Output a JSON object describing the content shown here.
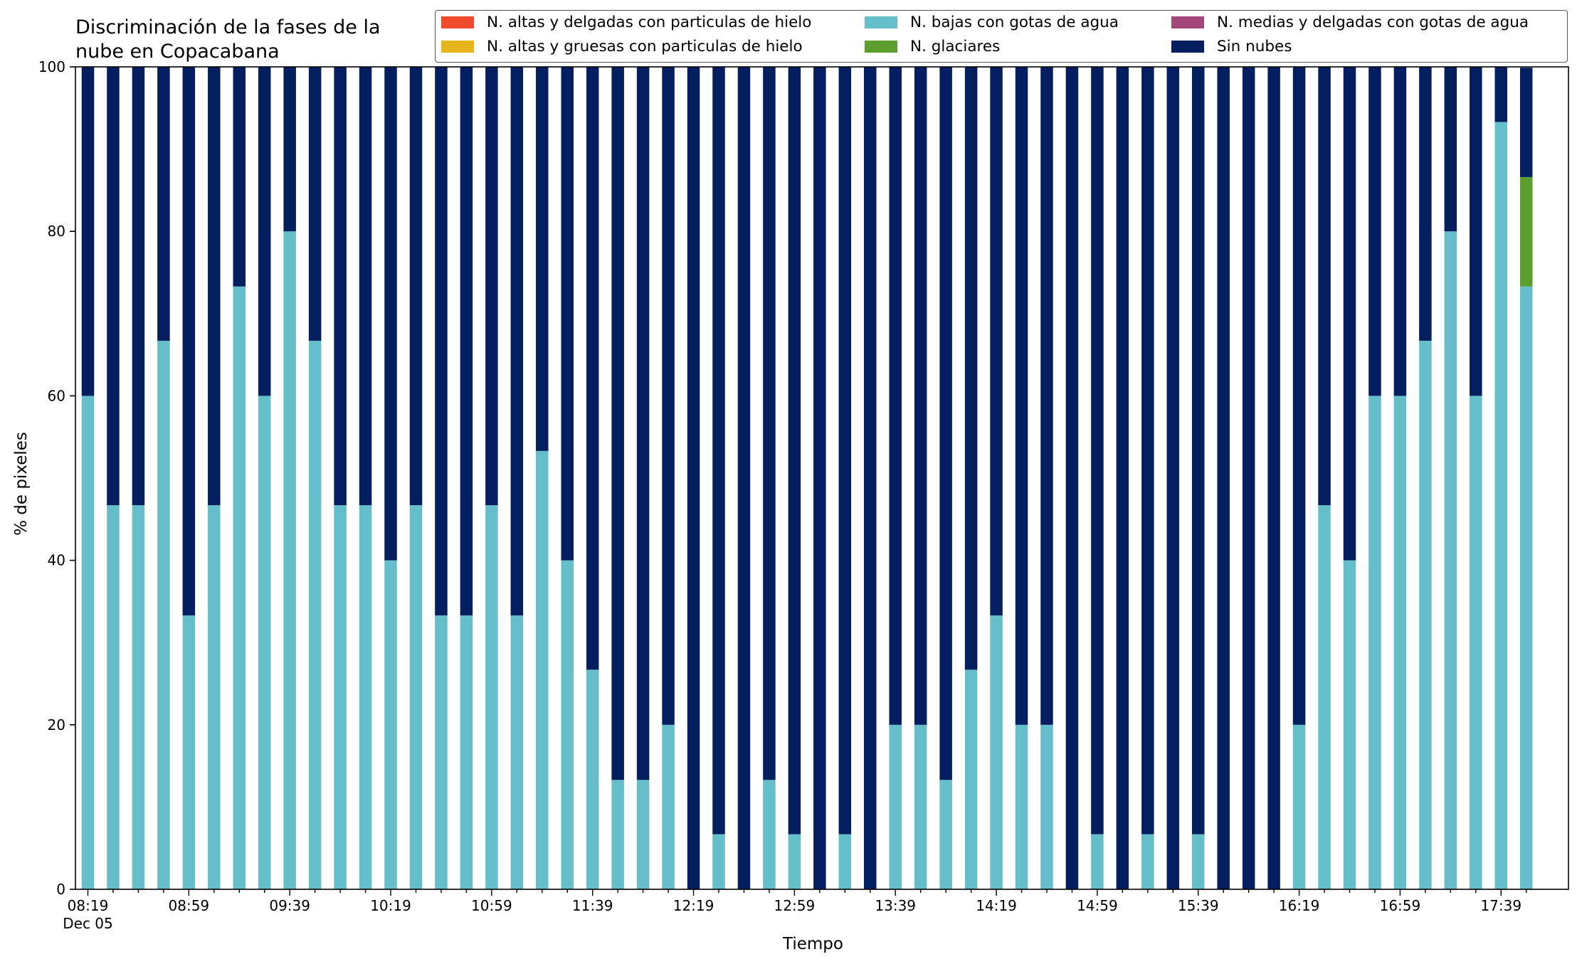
{
  "chart_data": {
    "type": "bar",
    "stacked": true,
    "title": "Discriminación de la fases de la\nnube en Copacabana",
    "xlabel": "Tiempo",
    "ylabel": "% de pixeles",
    "ylim": [
      0,
      100
    ],
    "yticks": [
      0,
      20,
      40,
      60,
      80,
      100
    ],
    "xtick_labels": [
      "08:19",
      "08:59",
      "09:39",
      "10:19",
      "10:59",
      "11:39",
      "12:19",
      "12:59",
      "13:39",
      "14:19",
      "14:59",
      "15:39",
      "16:19",
      "16:59",
      "17:39"
    ],
    "xtick_date": "Dec 05",
    "x_interval_minutes": 10,
    "legend_position": "top-right",
    "series": [
      {
        "name": "N. altas y delgadas con particulas de hielo",
        "color": "#f04a2c",
        "values": [
          0,
          0,
          0,
          0,
          0,
          0,
          0,
          0,
          0,
          0,
          0,
          0,
          0,
          0,
          0,
          0,
          0,
          0,
          0,
          0,
          0,
          0,
          0,
          0,
          0,
          0,
          0,
          0,
          0,
          0,
          0,
          0,
          0,
          0,
          0,
          0,
          0,
          0,
          0,
          0,
          0,
          0,
          0,
          0,
          0,
          0,
          0,
          0,
          0,
          0,
          0,
          0,
          0,
          0,
          0,
          0,
          0,
          0
        ]
      },
      {
        "name": "N. altas y gruesas con particulas de hielo",
        "color": "#e6b51c",
        "values": [
          0,
          0,
          0,
          0,
          0,
          0,
          0,
          0,
          0,
          0,
          0,
          0,
          0,
          0,
          0,
          0,
          0,
          0,
          0,
          0,
          0,
          0,
          0,
          0,
          0,
          0,
          0,
          0,
          0,
          0,
          0,
          0,
          0,
          0,
          0,
          0,
          0,
          0,
          0,
          0,
          0,
          0,
          0,
          0,
          0,
          0,
          0,
          0,
          0,
          0,
          0,
          0,
          0,
          0,
          0,
          0,
          0,
          0
        ]
      },
      {
        "name": "N. bajas con gotas de agua",
        "color": "#64bfca",
        "values": [
          60,
          46.7,
          46.7,
          66.7,
          33.3,
          46.7,
          73.3,
          60,
          80,
          66.7,
          46.7,
          46.7,
          40,
          46.7,
          33.3,
          33.3,
          46.7,
          33.3,
          53.3,
          40,
          26.7,
          13.3,
          13.3,
          20,
          0,
          6.7,
          0,
          13.3,
          6.7,
          0,
          6.7,
          0,
          20,
          20,
          13.3,
          26.7,
          33.3,
          20,
          20,
          0,
          6.7,
          0,
          6.7,
          0,
          6.7,
          0,
          0,
          0,
          20,
          46.7,
          40,
          60,
          60,
          66.7,
          80,
          60,
          93.3,
          73.3
        ]
      },
      {
        "name": "N. glaciares",
        "color": "#5d9f2f",
        "values": [
          0,
          0,
          0,
          0,
          0,
          0,
          0,
          0,
          0,
          0,
          0,
          0,
          0,
          0,
          0,
          0,
          0,
          0,
          0,
          0,
          0,
          0,
          0,
          0,
          0,
          0,
          0,
          0,
          0,
          0,
          0,
          0,
          0,
          0,
          0,
          0,
          0,
          0,
          0,
          0,
          0,
          0,
          0,
          0,
          0,
          0,
          0,
          0,
          0,
          0,
          0,
          0,
          0,
          0,
          0,
          0,
          0,
          13.3
        ]
      },
      {
        "name": "N. medias y delgadas con gotas de agua",
        "color": "#a3467a",
        "values": [
          0,
          0,
          0,
          0,
          0,
          0,
          0,
          0,
          0,
          0,
          0,
          0,
          0,
          0,
          0,
          0,
          0,
          0,
          0,
          0,
          0,
          0,
          0,
          0,
          0,
          0,
          0,
          0,
          0,
          0,
          0,
          0,
          0,
          0,
          0,
          0,
          0,
          0,
          0,
          0,
          0,
          0,
          0,
          0,
          0,
          0,
          0,
          0,
          0,
          0,
          0,
          0,
          0,
          0,
          0,
          0,
          0,
          0
        ]
      },
      {
        "name": "Sin nubes",
        "color": "#041f60",
        "values": [
          40,
          53.3,
          53.3,
          33.3,
          66.7,
          53.3,
          26.7,
          40,
          20,
          33.3,
          53.3,
          53.3,
          60,
          53.3,
          66.7,
          66.7,
          53.3,
          66.7,
          46.7,
          60,
          73.3,
          86.7,
          86.7,
          80,
          100,
          93.3,
          100,
          86.7,
          93.3,
          100,
          93.3,
          100,
          80,
          80,
          86.7,
          73.3,
          66.7,
          80,
          80,
          100,
          93.3,
          100,
          93.3,
          100,
          93.3,
          100,
          100,
          100,
          80,
          53.3,
          60,
          40,
          40,
          33.3,
          20,
          40,
          6.7,
          13.3
        ]
      }
    ]
  }
}
